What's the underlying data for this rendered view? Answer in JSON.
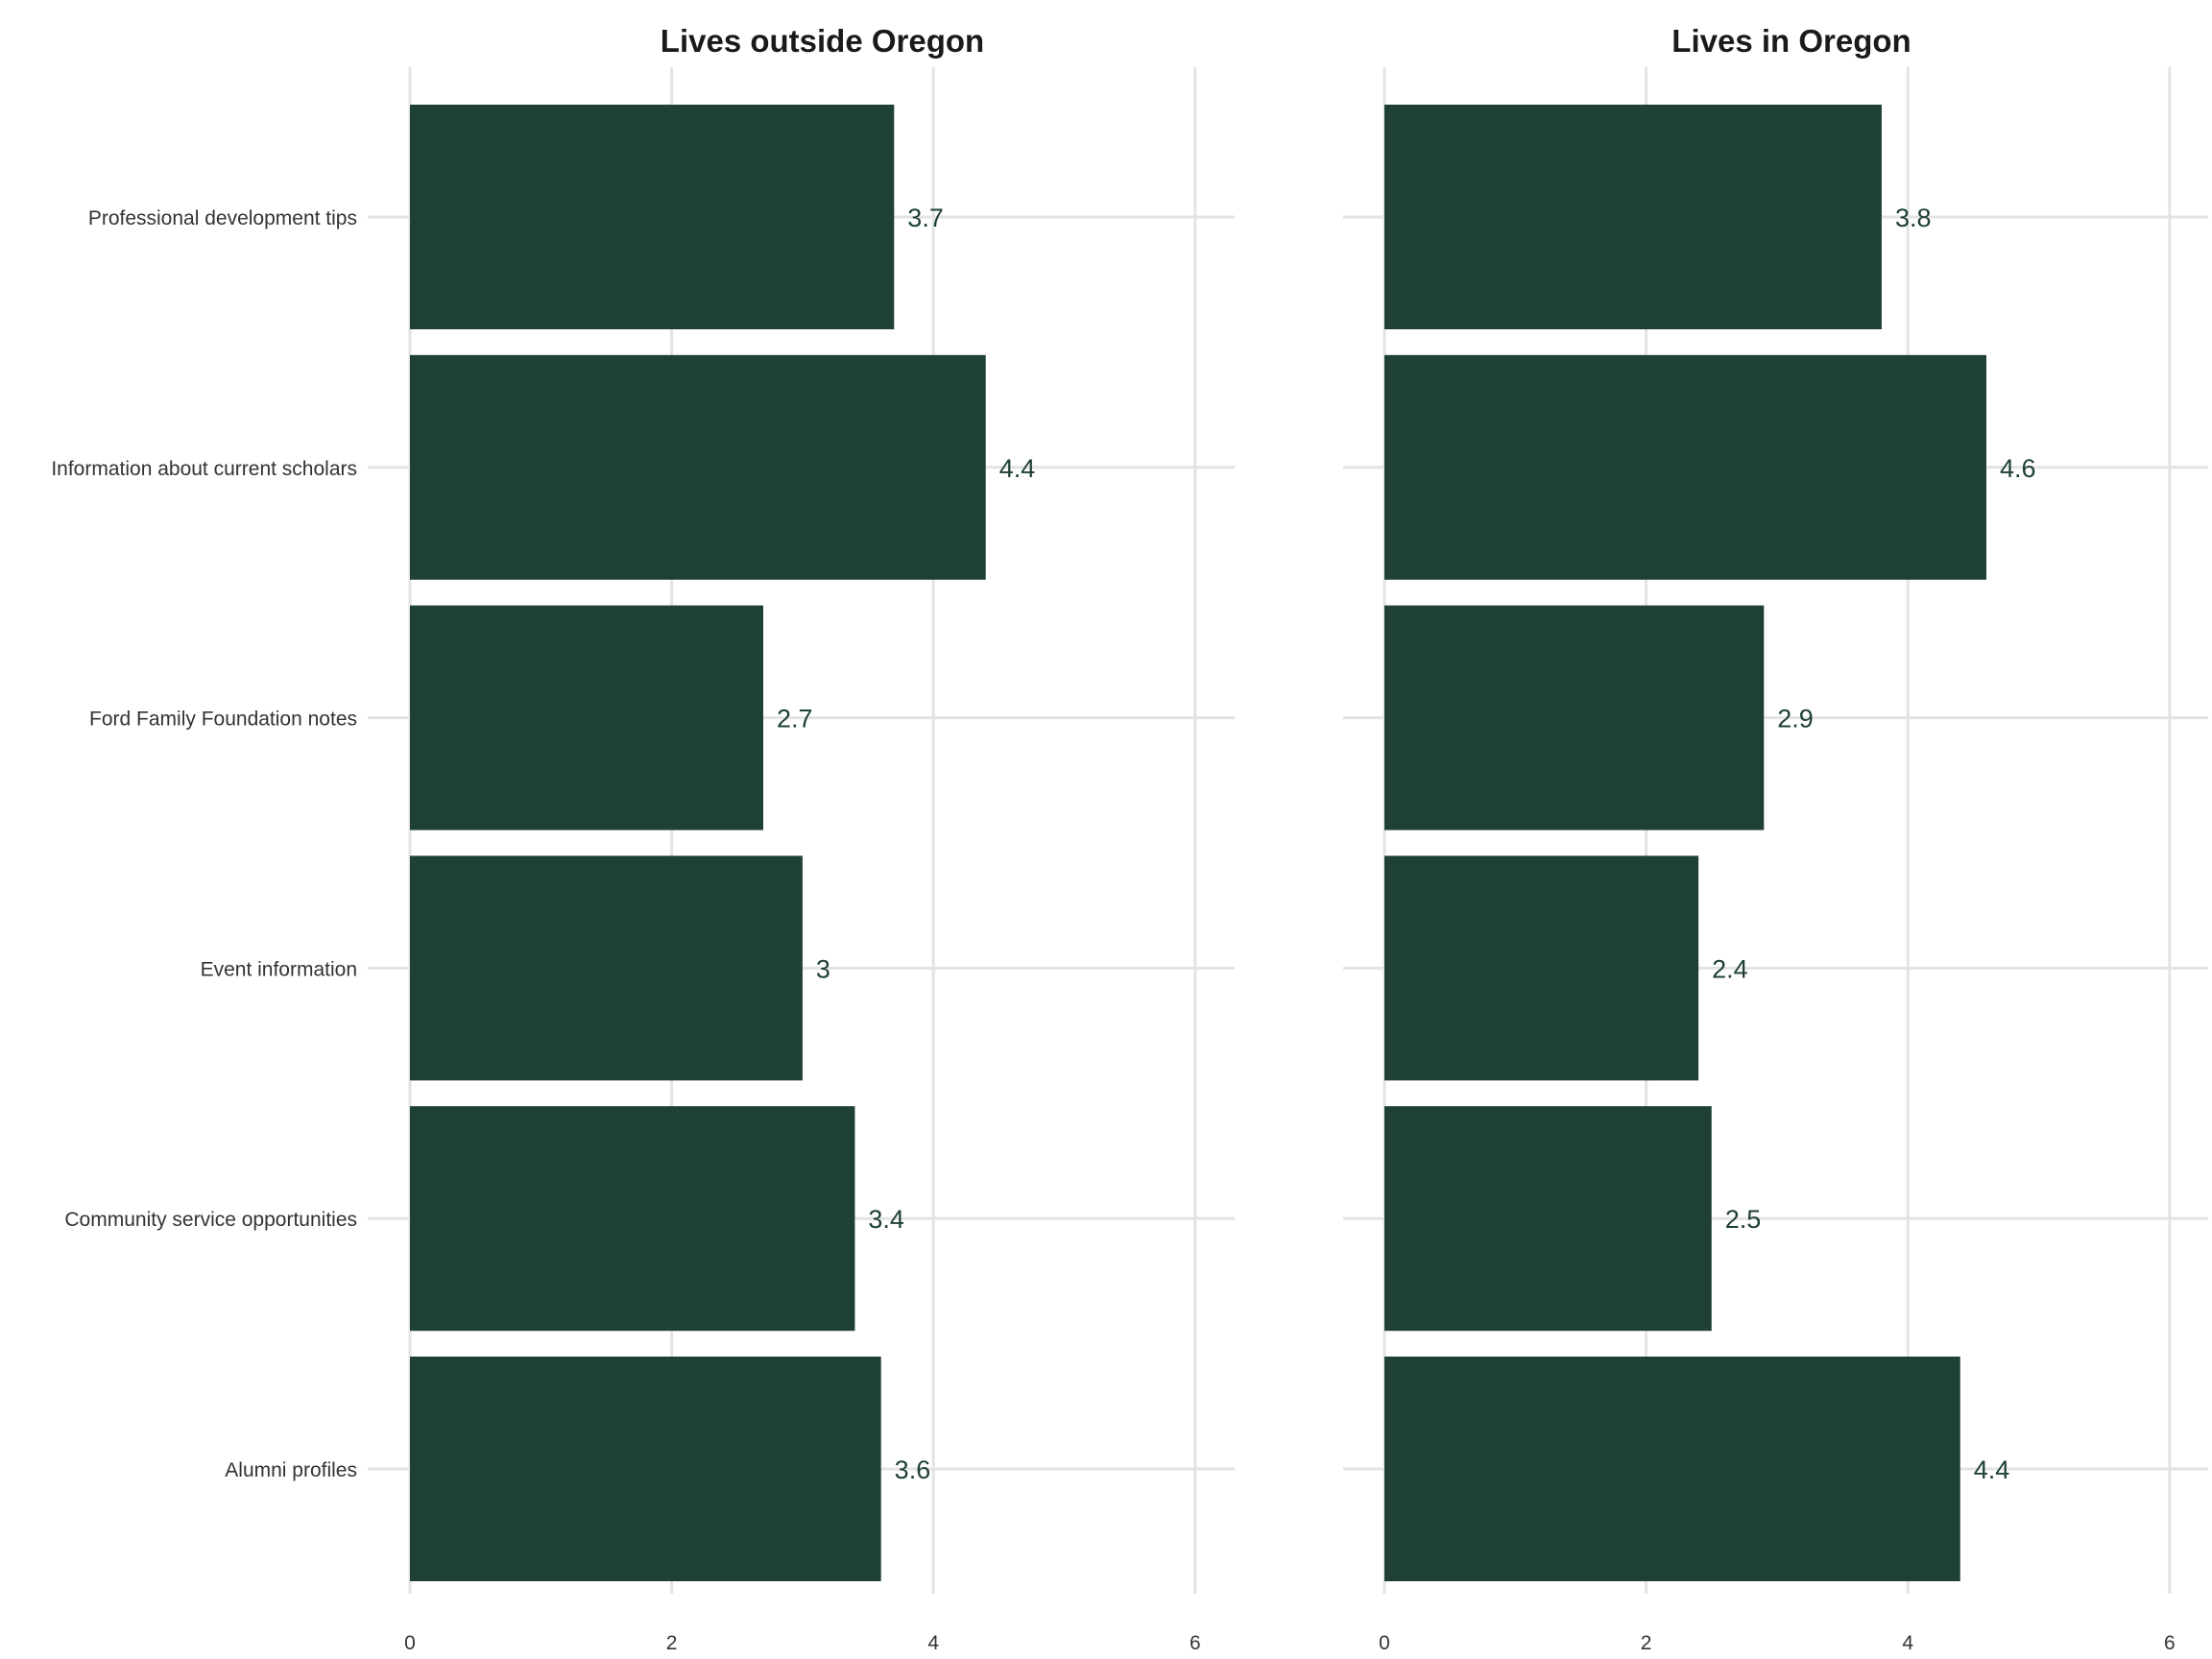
{
  "chart_data": {
    "type": "bar",
    "orientation": "horizontal",
    "categories": [
      "Professional development tips",
      "Information about current scholars",
      "Ford Family Foundation notes",
      "Event information",
      "Community service opportunities",
      "Alumni profiles"
    ],
    "xlim": [
      0,
      6.3
    ],
    "xticks": [
      0,
      2,
      4,
      6
    ],
    "grid": true,
    "bar_color": "#1f4034",
    "label_color": "#1f4034",
    "panels": [
      {
        "title": "Lives outside Oregon",
        "values": [
          3.7,
          4.4,
          2.7,
          3,
          3.4,
          3.6
        ],
        "value_labels": [
          "3.7",
          "4.4",
          "2.7",
          "3",
          "3.4",
          "3.6"
        ]
      },
      {
        "title": "Lives in Oregon",
        "values": [
          3.8,
          4.6,
          2.9,
          2.4,
          2.5,
          4.4
        ],
        "value_labels": [
          "3.8",
          "4.6",
          "2.9",
          "2.4",
          "2.5",
          "4.4"
        ]
      }
    ]
  }
}
